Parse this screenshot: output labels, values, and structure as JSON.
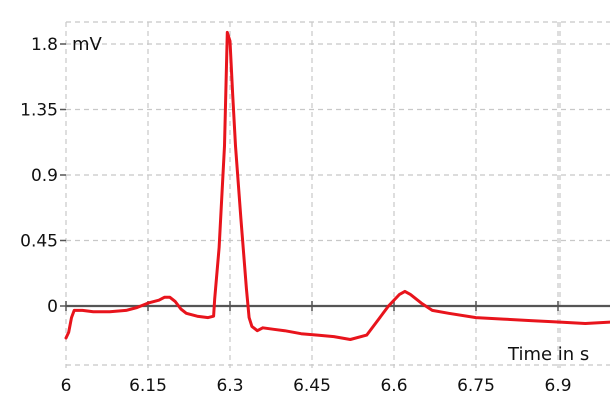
{
  "chart_data": {
    "type": "line",
    "title": "",
    "xlabel": "Time in s",
    "ylabel": "mV",
    "xlim": [
      6.0,
      7.05
    ],
    "ylim": [
      -0.45,
      1.95
    ],
    "grid": true,
    "x_ticks": [
      6,
      6.15,
      6.3,
      6.45,
      6.6,
      6.75,
      6.9
    ],
    "x_tick_labels": [
      "6",
      "6.15",
      "6.3",
      "6.45",
      "6.6",
      "6.75",
      "6.9"
    ],
    "y_ticks": [
      0,
      0.45,
      0.9,
      1.35,
      1.8
    ],
    "y_tick_labels": [
      "0",
      "0.45",
      "0.9",
      "1.35",
      "1.8"
    ],
    "series": [
      {
        "color": "#e8141c",
        "x": [
          6.0,
          6.005,
          6.01,
          6.015,
          6.03,
          6.05,
          6.08,
          6.11,
          6.13,
          6.15,
          6.17,
          6.18,
          6.19,
          6.2,
          6.21,
          6.22,
          6.24,
          6.26,
          6.27,
          6.272,
          6.28,
          6.29,
          6.295,
          6.3,
          6.305,
          6.31,
          6.32,
          6.33,
          6.335,
          6.34,
          6.35,
          6.36,
          6.38,
          6.4,
          6.43,
          6.46,
          6.49,
          6.52,
          6.55,
          6.57,
          6.59,
          6.61,
          6.62,
          6.63,
          6.65,
          6.67,
          6.7,
          6.75,
          6.8,
          6.85,
          6.9,
          6.95,
          7.0,
          7.05
        ],
        "y": [
          -0.22,
          -0.18,
          -0.08,
          -0.03,
          -0.03,
          -0.04,
          -0.04,
          -0.03,
          -0.01,
          0.02,
          0.04,
          0.06,
          0.06,
          0.03,
          -0.02,
          -0.05,
          -0.07,
          -0.08,
          -0.07,
          0.05,
          0.4,
          1.1,
          1.88,
          1.82,
          1.45,
          1.1,
          0.6,
          0.12,
          -0.08,
          -0.14,
          -0.17,
          -0.15,
          -0.16,
          -0.17,
          -0.19,
          -0.2,
          -0.21,
          -0.23,
          -0.2,
          -0.1,
          0.0,
          0.08,
          0.1,
          0.08,
          0.02,
          -0.03,
          -0.05,
          -0.08,
          -0.09,
          -0.1,
          -0.11,
          -0.12,
          -0.11,
          -0.09
        ]
      }
    ]
  }
}
